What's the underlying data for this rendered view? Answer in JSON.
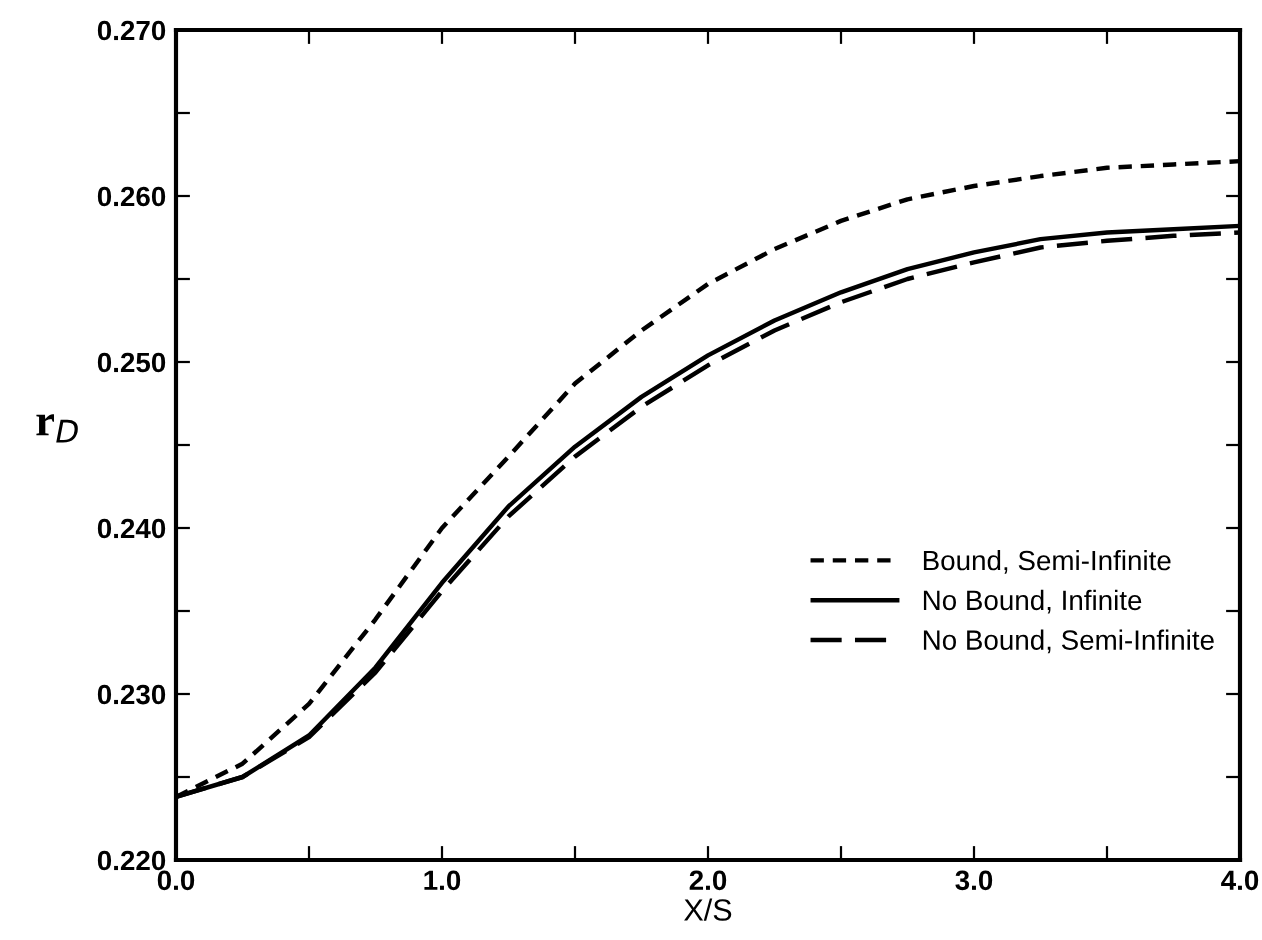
{
  "chart_data": {
    "type": "line",
    "xlabel": "X/S",
    "ylabel": "r$_{D}$",
    "xlim": [
      0.0,
      4.0
    ],
    "ylim": [
      0.22,
      0.27
    ],
    "xticks": [
      {
        "value": 0.0,
        "label": "0.0"
      },
      {
        "value": 0.5,
        "label": null
      },
      {
        "value": 1.0,
        "label": "1.0"
      },
      {
        "value": 1.5,
        "label": null
      },
      {
        "value": 2.0,
        "label": "2.0"
      },
      {
        "value": 2.5,
        "label": null
      },
      {
        "value": 3.0,
        "label": "3.0"
      },
      {
        "value": 3.5,
        "label": null
      },
      {
        "value": 4.0,
        "label": "4.0"
      }
    ],
    "yticks": [
      {
        "value": 0.22,
        "label": "0.220"
      },
      {
        "value": 0.225,
        "label": null
      },
      {
        "value": 0.23,
        "label": "0.230"
      },
      {
        "value": 0.235,
        "label": null
      },
      {
        "value": 0.24,
        "label": "0.240"
      },
      {
        "value": 0.245,
        "label": null
      },
      {
        "value": 0.25,
        "label": "0.250"
      },
      {
        "value": 0.255,
        "label": null
      },
      {
        "value": 0.26,
        "label": "0.260"
      },
      {
        "value": 0.265,
        "label": null
      },
      {
        "value": 0.27,
        "label": "0.270"
      }
    ],
    "grid": false,
    "legend": "right",
    "marker": "none",
    "x": [
      0.0,
      0.25,
      0.5,
      0.75,
      1.0,
      1.25,
      1.5,
      1.75,
      2.0,
      2.25,
      2.5,
      2.75,
      3.0,
      3.25,
      3.5,
      3.75,
      4.0
    ],
    "series": [
      {
        "name": "Bound, Semi-Infinite",
        "color": "#000000",
        "line_style": "dotted",
        "values": [
          0.2238,
          0.2258,
          0.2294,
          0.2345,
          0.24,
          0.2443,
          0.2487,
          0.2519,
          0.2547,
          0.2568,
          0.2585,
          0.2598,
          0.2606,
          0.2612,
          0.2617,
          0.2619,
          0.2621
        ]
      },
      {
        "name": "No Bound, Infinite",
        "color": "#000000",
        "line_style": "solid",
        "values": [
          0.2238,
          0.225,
          0.2275,
          0.2316,
          0.2367,
          0.2413,
          0.2449,
          0.2479,
          0.2504,
          0.2525,
          0.2542,
          0.2556,
          0.2566,
          0.2574,
          0.2578,
          0.258,
          0.2582
        ]
      },
      {
        "name": "No Bound, Semi-Infinite",
        "color": "#000000",
        "line_style": "dashed",
        "values": [
          0.2238,
          0.225,
          0.2274,
          0.2313,
          0.2362,
          0.2407,
          0.2443,
          0.2473,
          0.2498,
          0.2519,
          0.2536,
          0.255,
          0.256,
          0.2569,
          0.2573,
          0.2576,
          0.2578
        ]
      }
    ]
  }
}
